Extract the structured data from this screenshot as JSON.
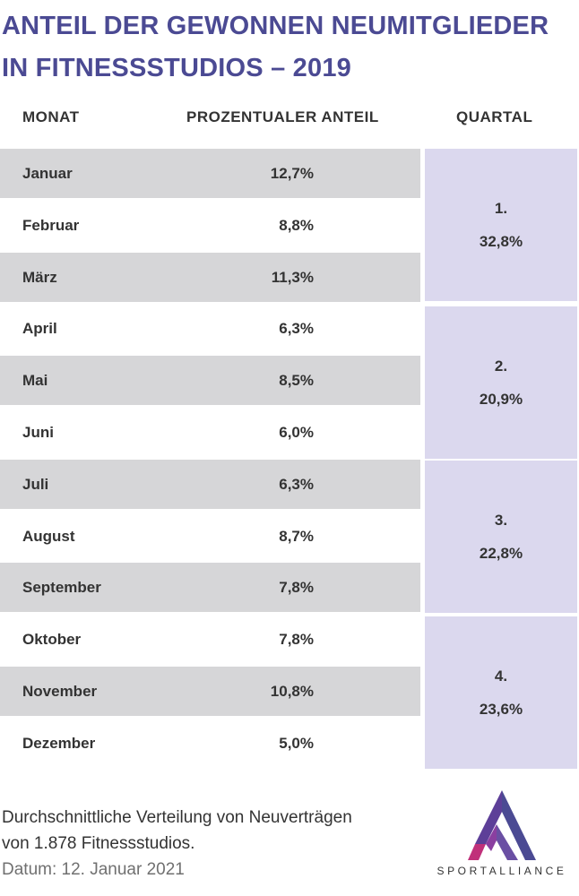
{
  "title": {
    "line1": "ANTEIL DER GEWONNEN NEUMITGLIEDER",
    "line2": "IN FITNESSSTUDIOS – 2019"
  },
  "headers": {
    "month": "MONAT",
    "percent": "PROZENTUALER ANTEIL",
    "quarter": "QUARTAL"
  },
  "chart_data": {
    "type": "table",
    "columns": [
      "MONAT",
      "PROZENTUALER ANTEIL",
      "QUARTAL"
    ],
    "rows": [
      {
        "month": "Januar",
        "value": "12,7%"
      },
      {
        "month": "Februar",
        "value": "8,8%"
      },
      {
        "month": "März",
        "value": "11,3%"
      },
      {
        "month": "April",
        "value": "6,3%"
      },
      {
        "month": "Mai",
        "value": "8,5%"
      },
      {
        "month": "Juni",
        "value": "6,0%"
      },
      {
        "month": "Juli",
        "value": "6,3%"
      },
      {
        "month": "August",
        "value": "8,7%"
      },
      {
        "month": "September",
        "value": "7,8%"
      },
      {
        "month": "Oktober",
        "value": "7,8%"
      },
      {
        "month": "November",
        "value": "10,8%"
      },
      {
        "month": "Dezember",
        "value": "5,0%"
      }
    ],
    "quarters": [
      {
        "label": "1.",
        "value": "32,8%"
      },
      {
        "label": "2.",
        "value": "20,9%"
      },
      {
        "label": "3.",
        "value": "22,8%"
      },
      {
        "label": "4.",
        "value": "23,6%"
      }
    ]
  },
  "footer": {
    "line1": "Durchschnittliche Verteilung von Neuverträgen",
    "line2": "von 1.878 Fitnessstudios.",
    "date": "Datum: 12. Januar 2021"
  },
  "logo": {
    "text": "SPORTALLIANCE",
    "colors": [
      "#4b4a93",
      "#8a3fa0",
      "#c0307a"
    ]
  },
  "colors": {
    "title": "#4b4a93",
    "row_shade": "#d6d6d8",
    "quarter_bg": "#dbd8ee"
  }
}
